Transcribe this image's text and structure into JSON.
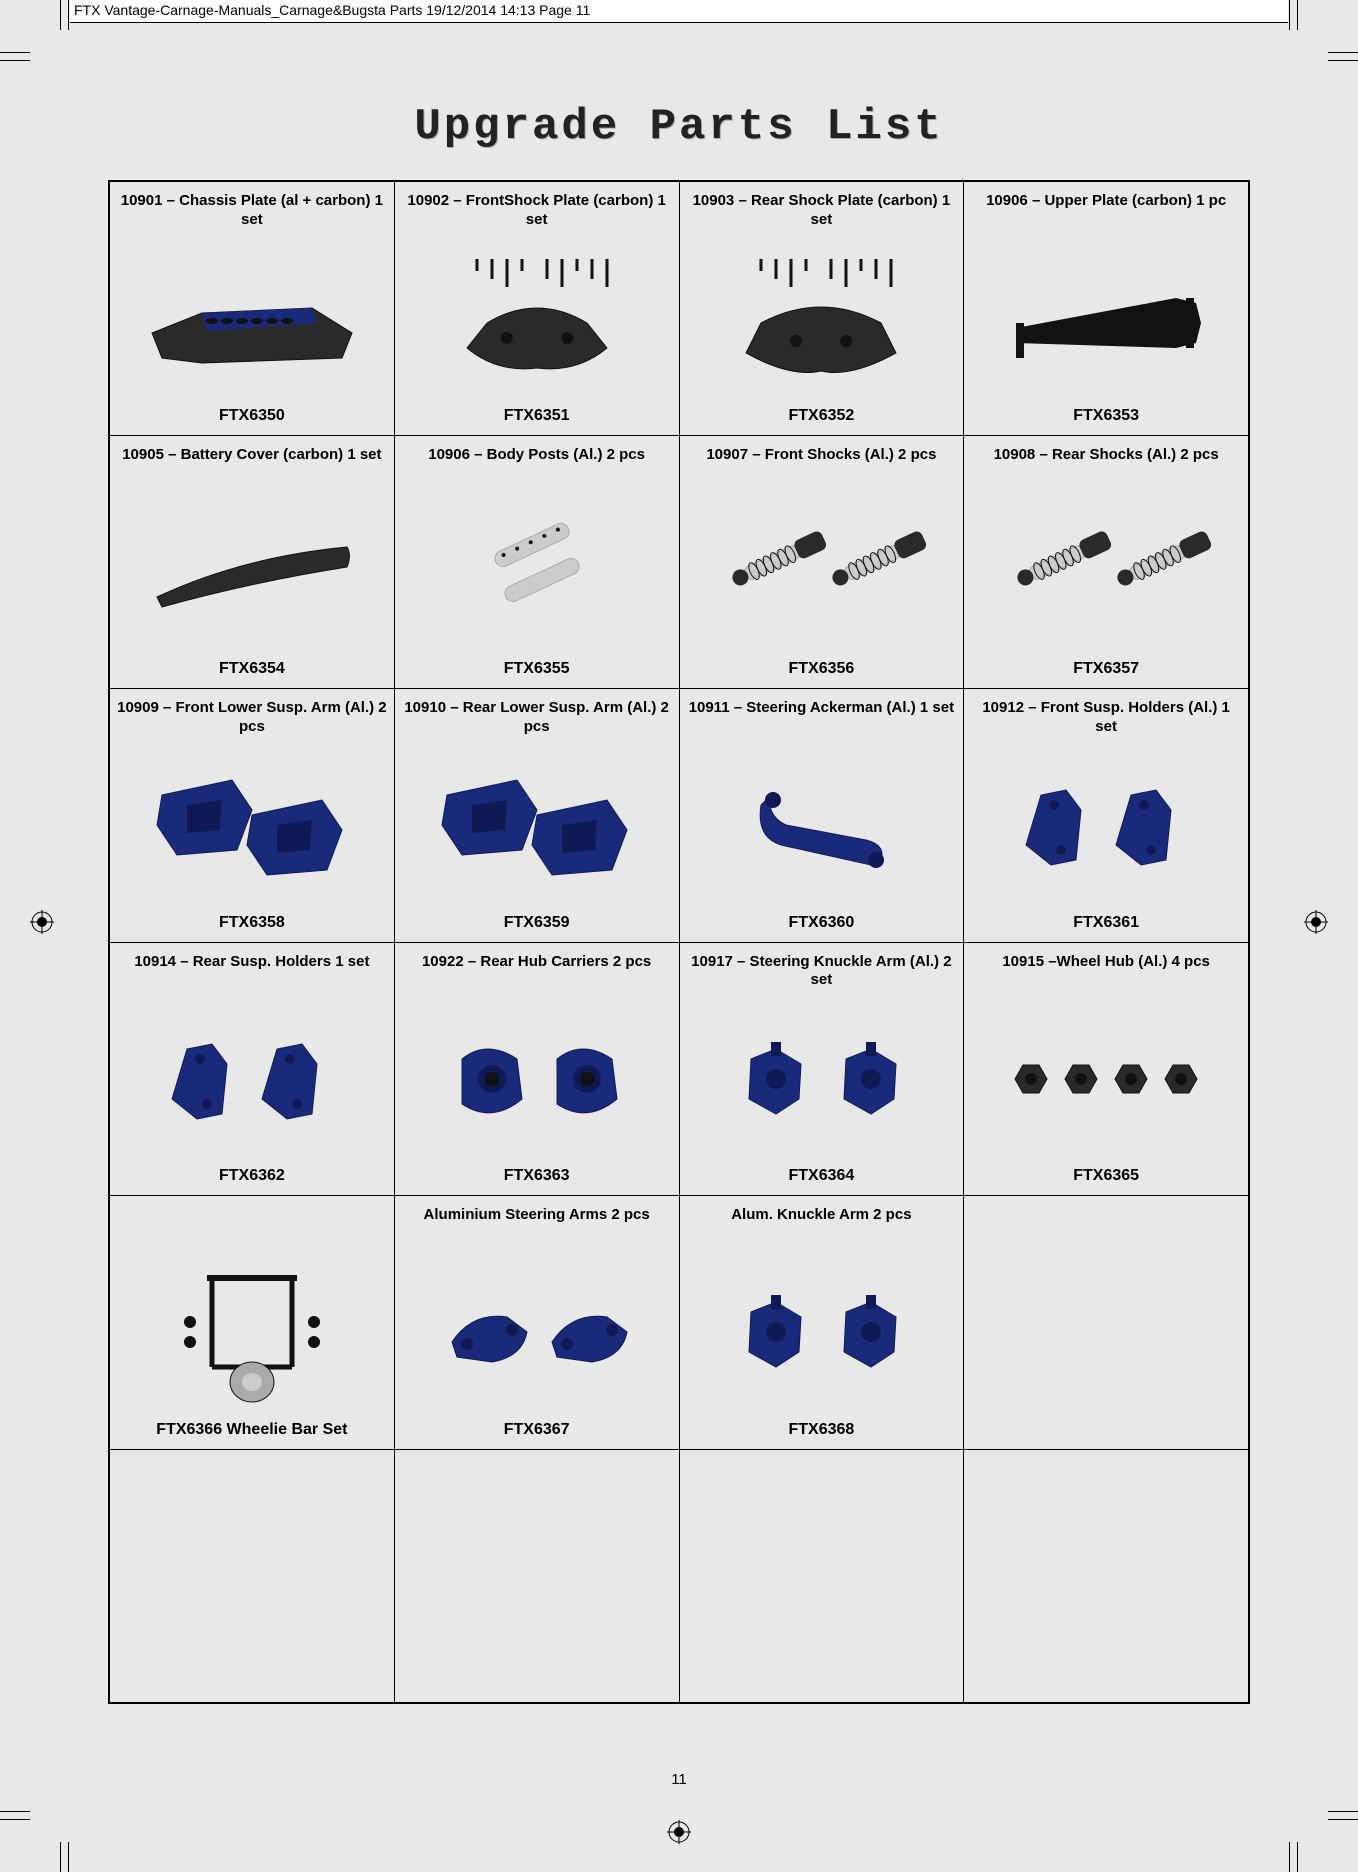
{
  "header_text": "FTX Vantage-Carnage-Manuals_Carnage&Bugsta Parts  19/12/2014  14:13  Page 11",
  "page_title": "Upgrade Parts List",
  "page_number": "11",
  "grid": {
    "rows": 6,
    "cols": 4
  },
  "parts": [
    [
      {
        "title": "10901 – Chassis Plate (al + carbon) 1 set",
        "code": "FTX6350",
        "img": "chassis-plate"
      },
      {
        "title": "10902 – FrontShock Plate (carbon) 1 set",
        "code": "FTX6351",
        "img": "front-shock-plate"
      },
      {
        "title": "10903 – Rear Shock Plate (carbon) 1 set",
        "code": "FTX6352",
        "img": "rear-shock-plate"
      },
      {
        "title": "10906 – Upper Plate (carbon) 1 pc",
        "code": "FTX6353",
        "img": "upper-plate"
      }
    ],
    [
      {
        "title": "10905 – Battery Cover (carbon) 1 set",
        "code": "FTX6354",
        "img": "battery-cover"
      },
      {
        "title": "10906 – Body Posts (Al.) 2 pcs",
        "code": "FTX6355",
        "img": "body-posts"
      },
      {
        "title": "10907 – Front Shocks (Al.)  2 pcs",
        "code": "FTX6356",
        "img": "front-shocks"
      },
      {
        "title": "10908 – Rear Shocks (Al.) 2 pcs",
        "code": "FTX6357",
        "img": "rear-shocks"
      }
    ],
    [
      {
        "title": "10909 – Front Lower Susp. Arm (Al.) 2 pcs",
        "code": "FTX6358",
        "img": "front-lower-arm"
      },
      {
        "title": "10910 – Rear Lower Susp. Arm (Al.) 2 pcs",
        "code": "FTX6359",
        "img": "rear-lower-arm"
      },
      {
        "title": "10911 – Steering Ackerman (Al.) 1 set",
        "code": "FTX6360",
        "img": "steering-ackerman"
      },
      {
        "title": "10912 – Front Susp. Holders (Al.) 1 set",
        "code": "FTX6361",
        "img": "front-susp-holders"
      }
    ],
    [
      {
        "title": "10914 – Rear Susp. Holders 1 set",
        "code": "FTX6362",
        "img": "rear-susp-holders"
      },
      {
        "title": "10922 – Rear Hub Carriers   2 pcs",
        "code": "FTX6363",
        "img": "rear-hub-carriers"
      },
      {
        "title": "10917 – Steering Knuckle Arm (Al.) 2 set",
        "code": "FTX6364",
        "img": "knuckle-arm"
      },
      {
        "title": "10915 –Wheel Hub (Al.)  4 pcs",
        "code": "FTX6365",
        "img": "wheel-hub"
      }
    ],
    [
      {
        "title": "",
        "code": "FTX6366   Wheelie Bar Set",
        "img": "wheelie-bar"
      },
      {
        "title": "Aluminium Steering Arms 2 pcs",
        "code": "FTX6367",
        "img": "alum-steering-arms"
      },
      {
        "title": "Alum. Knuckle Arm 2 pcs",
        "code": "FTX6368",
        "img": "alum-knuckle-arm"
      },
      {
        "title": "",
        "code": "",
        "img": ""
      }
    ],
    [
      {
        "title": "",
        "code": "",
        "img": ""
      },
      {
        "title": "",
        "code": "",
        "img": ""
      },
      {
        "title": "",
        "code": "",
        "img": ""
      },
      {
        "title": "",
        "code": "",
        "img": ""
      }
    ]
  ],
  "colors": {
    "blue_anodized": "#1a2a7a",
    "dark_blue": "#0f1a55",
    "black": "#111111",
    "dark_gray": "#2a2a2a",
    "silver": "#aaaaaa",
    "silver_light": "#cccccc",
    "page_bg": "#e8e8e8"
  }
}
